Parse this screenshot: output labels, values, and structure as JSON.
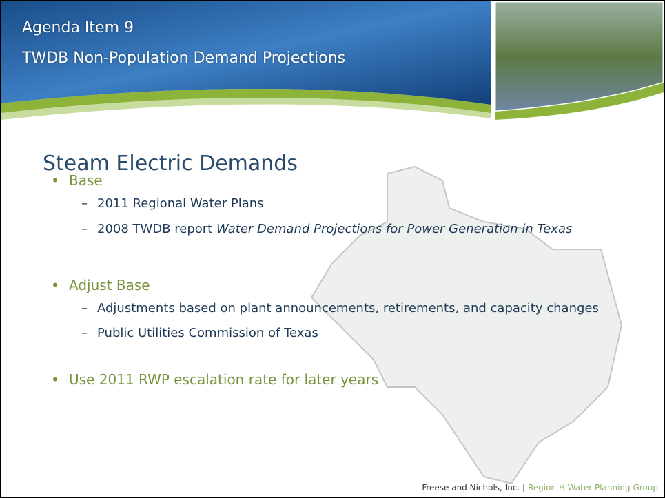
{
  "header": {
    "agenda": "Agenda Item 9",
    "title": "TWDB Non-Population Demand Projections"
  },
  "slide": {
    "heading": "Steam Electric Demands",
    "bullets": [
      {
        "text": "Base",
        "subs": [
          {
            "parts": [
              {
                "text": "2011 Regional Water Plans"
              }
            ]
          },
          {
            "parts": [
              {
                "text": "2008 TWDB report "
              },
              {
                "text": "Water Demand Projections for Power Generation in Texas",
                "italic": true
              }
            ]
          }
        ]
      },
      {
        "text": "Adjust Base",
        "subs": [
          {
            "parts": [
              {
                "text": "Adjustments based on plant announcements, retirements, and capacity changes"
              }
            ]
          },
          {
            "parts": [
              {
                "text": "Public Utilities Commission of Texas"
              }
            ]
          }
        ]
      },
      {
        "text": "Use 2011 RWP escalation rate for later years",
        "subs": []
      }
    ]
  },
  "footer": {
    "company": "Freese and Nichols, Inc. |",
    "group": "Region H Water Planning Group"
  }
}
